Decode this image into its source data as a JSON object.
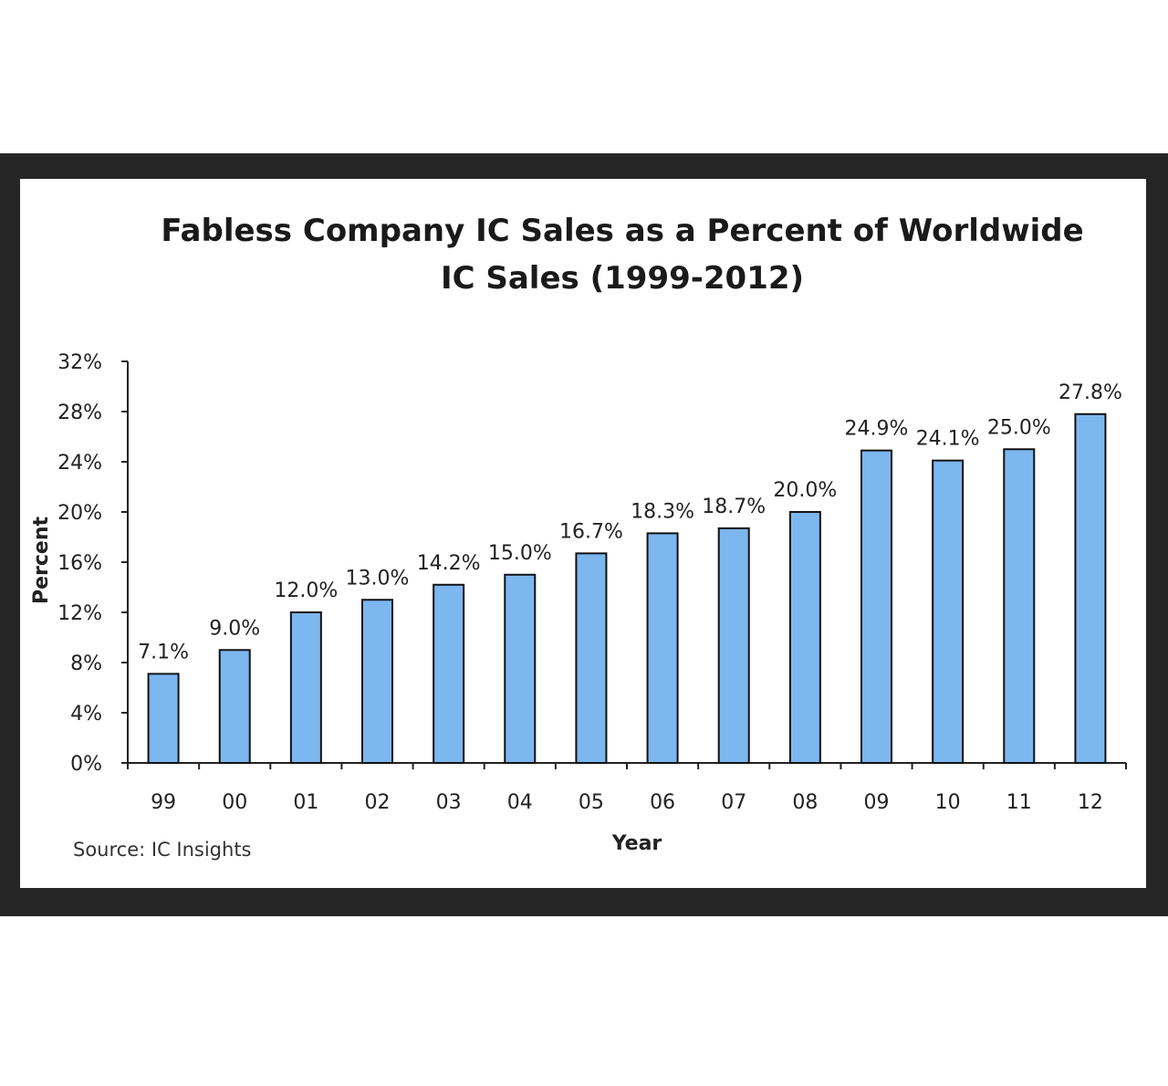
{
  "chart_data": {
    "type": "bar",
    "title": [
      "Fabless Company IC Sales as a Percent of Worldwide",
      "IC Sales (1999-2012)"
    ],
    "xlabel": "Year",
    "ylabel": "Percent",
    "source": "Source: IC Insights",
    "categories": [
      "99",
      "00",
      "01",
      "02",
      "03",
      "04",
      "05",
      "06",
      "07",
      "08",
      "09",
      "10",
      "11",
      "12"
    ],
    "values": [
      7.1,
      9.0,
      12.0,
      13.0,
      14.2,
      15.0,
      16.7,
      18.3,
      18.7,
      20.0,
      24.9,
      24.1,
      25.0,
      27.8
    ],
    "data_labels": [
      "7.1%",
      "9.0%",
      "12.0%",
      "13.0%",
      "14.2%",
      "15.0%",
      "16.7%",
      "18.3%",
      "18.7%",
      "20.0%",
      "24.9%",
      "24.1%",
      "25.0%",
      "27.8%"
    ],
    "yticks": [
      0,
      4,
      8,
      12,
      16,
      20,
      24,
      28,
      32
    ],
    "ytick_labels": [
      "0%",
      "4%",
      "8%",
      "12%",
      "16%",
      "20%",
      "24%",
      "28%",
      "32%"
    ],
    "ylim": [
      0,
      32
    ],
    "grid": false,
    "legend": "none",
    "bar_color": "#7db7f0",
    "bar_edge_color": "#111111"
  }
}
